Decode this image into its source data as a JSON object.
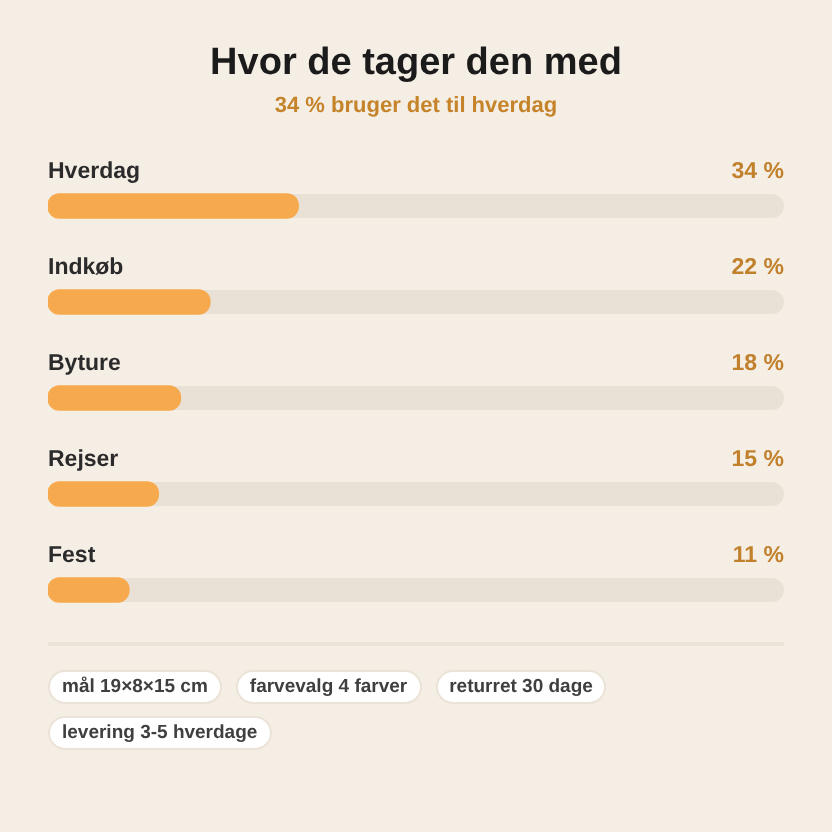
{
  "chart_data": {
    "type": "bar",
    "orientation": "horizontal",
    "title": "Hvor de tager den med",
    "subtitle": "34 % bruger det til hverdag",
    "categories": [
      "Hverdag",
      "Indkøb",
      "Byture",
      "Rejser",
      "Fest"
    ],
    "values": [
      34,
      22,
      18,
      15,
      11
    ],
    "color": "#f6a94d",
    "value_labels": [
      "34 %",
      "22 %",
      "18 %",
      "15 %",
      "11 %"
    ],
    "xlim": [
      0,
      100
    ],
    "tick_labels": "y",
    "annotations": [
      "mål 19×8×15 cm",
      "farvevalg 4 farver",
      "returret 30 dage",
      "levering 3-5 hverdage"
    ]
  }
}
